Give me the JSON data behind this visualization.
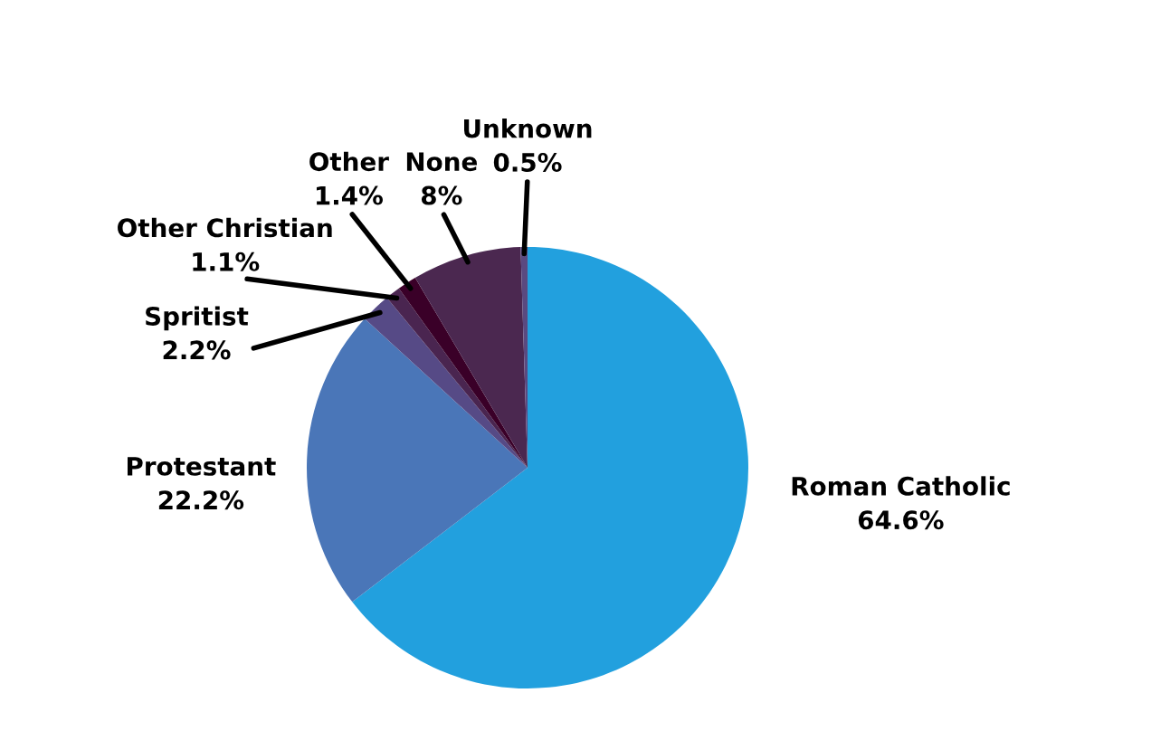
{
  "chart_data": {
    "type": "pie",
    "categories": [
      "Roman Catholic",
      "Protestant",
      "Spritist",
      "Other Christian",
      "Other",
      "None",
      "Unknown"
    ],
    "values": [
      64.6,
      22.2,
      2.2,
      1.1,
      1.4,
      8,
      0.5
    ],
    "value_labels": [
      "64.6%",
      "22.2%",
      "2.2%",
      "1.1%",
      "1.4%",
      "8%",
      "0.5%"
    ],
    "colors": [
      "#22a0de",
      "#4a76b8",
      "#564a86",
      "#4a2550",
      "#3a0028",
      "#4b2850",
      "#5a4a80"
    ]
  }
}
